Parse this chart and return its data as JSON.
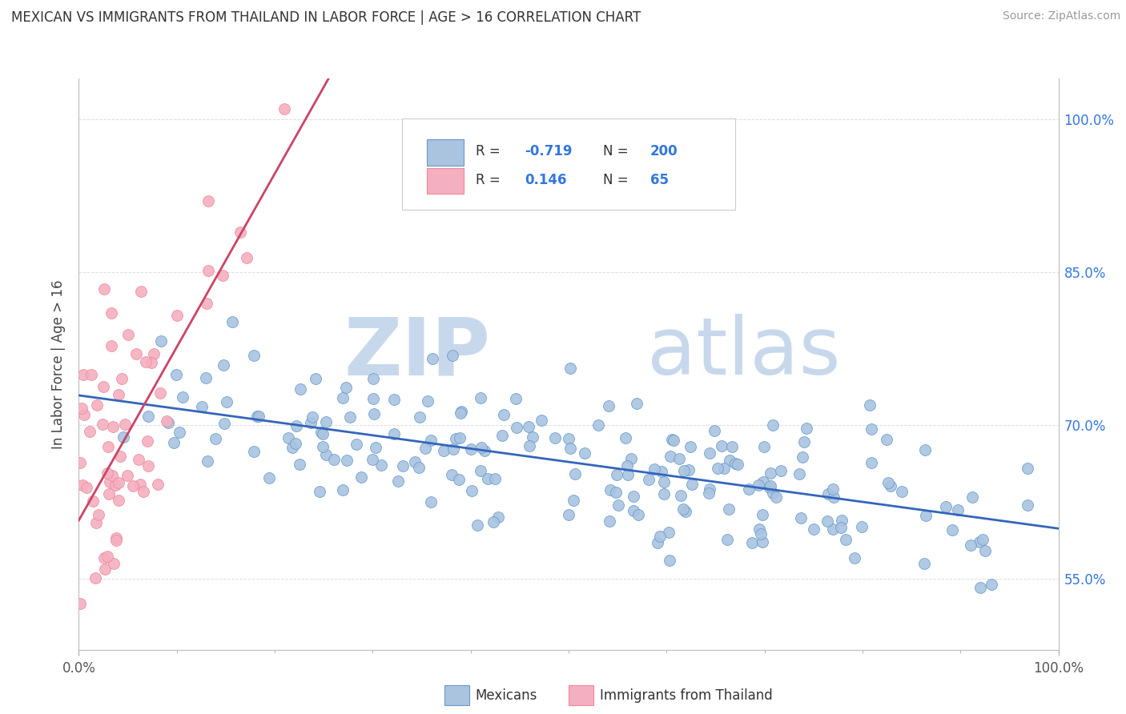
{
  "title": "MEXICAN VS IMMIGRANTS FROM THAILAND IN LABOR FORCE | AGE > 16 CORRELATION CHART",
  "source": "Source: ZipAtlas.com",
  "ylabel": "In Labor Force | Age > 16",
  "y_tick_labels": [
    "55.0%",
    "70.0%",
    "85.0%",
    "100.0%"
  ],
  "y_tick_values": [
    0.55,
    0.7,
    0.85,
    1.0
  ],
  "R_blue": -0.719,
  "N_blue": 200,
  "R_pink": 0.146,
  "N_pink": 65,
  "blue_dot_fill": "#aac4e0",
  "blue_dot_edge": "#6699cc",
  "pink_dot_fill": "#f4b0c0",
  "pink_dot_edge": "#ee8899",
  "trend_blue_color": "#3366bb",
  "trend_pink_color": "#cc4466",
  "trend_pink_dash_color": "#dd99aa",
  "watermark_zip": "ZIP",
  "watermark_atlas": "atlas",
  "watermark_color": "#c8d8ec",
  "background_color": "#ffffff",
  "grid_color": "#dddddd",
  "xlim": [
    0.0,
    1.0
  ],
  "ylim": [
    0.48,
    1.04
  ],
  "blue_seed": 42,
  "pink_seed": 7
}
